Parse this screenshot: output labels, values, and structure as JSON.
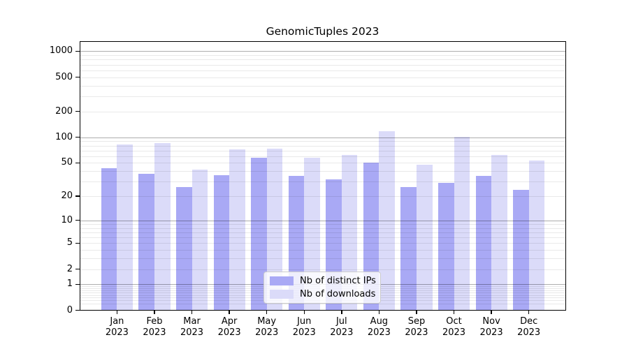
{
  "chart_data": {
    "type": "bar",
    "title": "GenomicTuples 2023",
    "x_categories": [
      "Jan 2023",
      "Feb 2023",
      "Mar 2023",
      "Apr 2023",
      "May 2023",
      "Jun 2023",
      "Jul 2023",
      "Aug 2023",
      "Sep 2023",
      "Oct 2023",
      "Nov 2023",
      "Dec 2023"
    ],
    "series": [
      {
        "name": "Nb of distinct IPs",
        "color": "#a9a9f5",
        "values": [
          43,
          37,
          26,
          36,
          57,
          35,
          32,
          50,
          26,
          29,
          35,
          24
        ]
      },
      {
        "name": "Nb of downloads",
        "color": "#dbdbf9",
        "values": [
          82,
          85,
          42,
          72,
          73,
          57,
          62,
          117,
          48,
          102,
          62,
          53
        ]
      }
    ],
    "xlabel": "",
    "ylabel": "",
    "y_scale": "log1p",
    "y_ticks": [
      0,
      1,
      2,
      5,
      10,
      20,
      50,
      100,
      200,
      500,
      1000
    ],
    "ylim": [
      0,
      1340
    ],
    "grid": true,
    "legend_position": "lower-center-inside",
    "colors": {
      "axis": "#000000",
      "major_grid": "#b3b3b3",
      "minor_grid": "#e8e8e8",
      "background": "#ffffff"
    }
  }
}
